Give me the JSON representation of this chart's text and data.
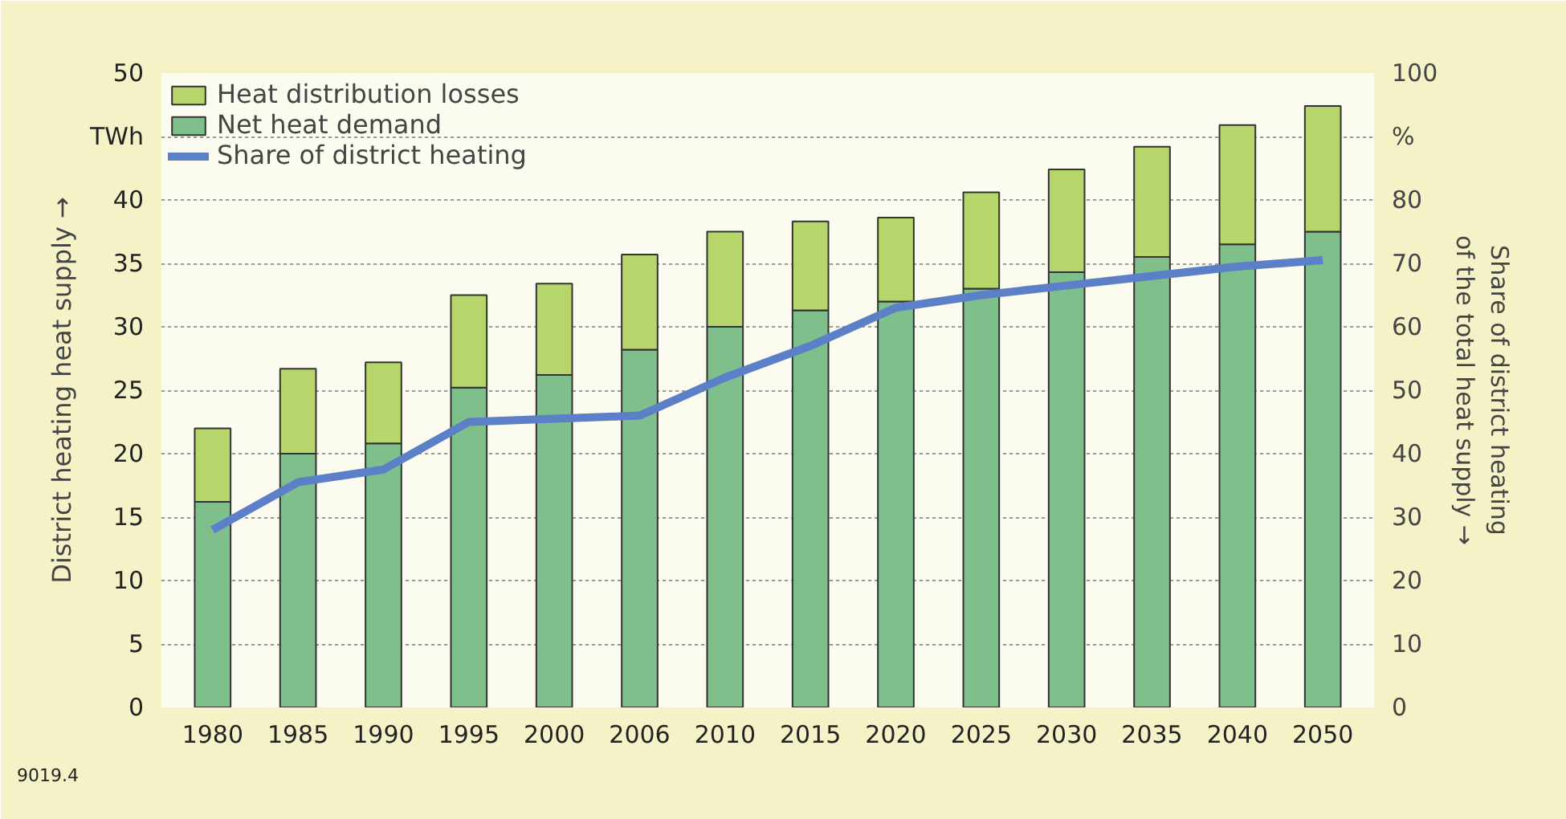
{
  "chart_data": {
    "type": "bar",
    "stacked": true,
    "categories": [
      "1980",
      "1985",
      "1990",
      "1995",
      "2000",
      "2006",
      "2010",
      "2015",
      "2020",
      "2025",
      "2030",
      "2035",
      "2040",
      "2050"
    ],
    "ylabel": "District heating heat supply →",
    "y2label": "Share of district heating\nof the total heat supply →",
    "ylim": [
      0,
      50
    ],
    "yticks": [
      0,
      5,
      10,
      15,
      20,
      25,
      30,
      35,
      40,
      {
        "value": 45,
        "label": "TWh"
      },
      50
    ],
    "y2lim": [
      0,
      100
    ],
    "y2ticks": [
      0,
      10,
      20,
      30,
      40,
      50,
      60,
      70,
      80,
      {
        "value": 90,
        "label": "%"
      },
      100
    ],
    "series": [
      {
        "name": "Net heat demand",
        "color": "#7fbf8c",
        "values": [
          16.2,
          20,
          20.8,
          25.2,
          26.2,
          28.2,
          30,
          31.3,
          32,
          33,
          34.3,
          35.5,
          36.5,
          37.5
        ]
      },
      {
        "name": "Heat distribution losses",
        "color": "#b6d66c",
        "values": [
          5.8,
          6.7,
          6.4,
          7.3,
          7.2,
          7.5,
          7.5,
          7,
          6.6,
          7.6,
          8.1,
          8.7,
          9.4,
          9.9
        ]
      },
      {
        "name": "Share of district heating",
        "type": "line",
        "axis": "y2",
        "color": "#5b80c8",
        "values": [
          28,
          35.5,
          37.5,
          45,
          45.5,
          46,
          52,
          57,
          63,
          65,
          66.5,
          68,
          69.5,
          70.5
        ]
      }
    ],
    "annotations": [
      "9019.4"
    ],
    "grid": "y",
    "legend": "top left"
  }
}
